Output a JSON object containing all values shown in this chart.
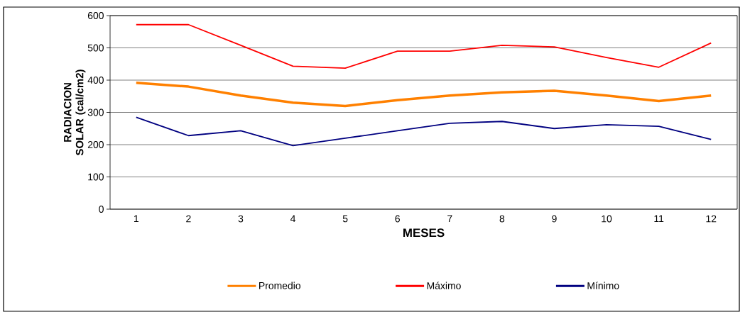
{
  "chart_data": {
    "type": "line",
    "xlabel": "MESES",
    "ylabel": "RADIACION SOLAR (cal/cm2)",
    "categories": [
      "1",
      "2",
      "3",
      "4",
      "5",
      "6",
      "7",
      "8",
      "9",
      "10",
      "11",
      "12"
    ],
    "series": [
      {
        "name": "Promedio",
        "color": "#ff8000",
        "values": [
          392,
          380,
          352,
          330,
          320,
          338,
          352,
          362,
          367,
          352,
          335,
          352
        ]
      },
      {
        "name": "Máximo",
        "color": "#ff0000",
        "values": [
          572,
          572,
          508,
          443,
          437,
          490,
          490,
          508,
          503,
          470,
          440,
          515
        ]
      },
      {
        "name": "Mínimo",
        "color": "#000080",
        "values": [
          285,
          228,
          243,
          197,
          220,
          243,
          266,
          272,
          250,
          262,
          257,
          216
        ]
      }
    ],
    "ylim": [
      0,
      600
    ],
    "yticks": [
      0,
      100,
      200,
      300,
      400,
      500,
      600
    ],
    "grid": "y",
    "legend": "bottom"
  }
}
